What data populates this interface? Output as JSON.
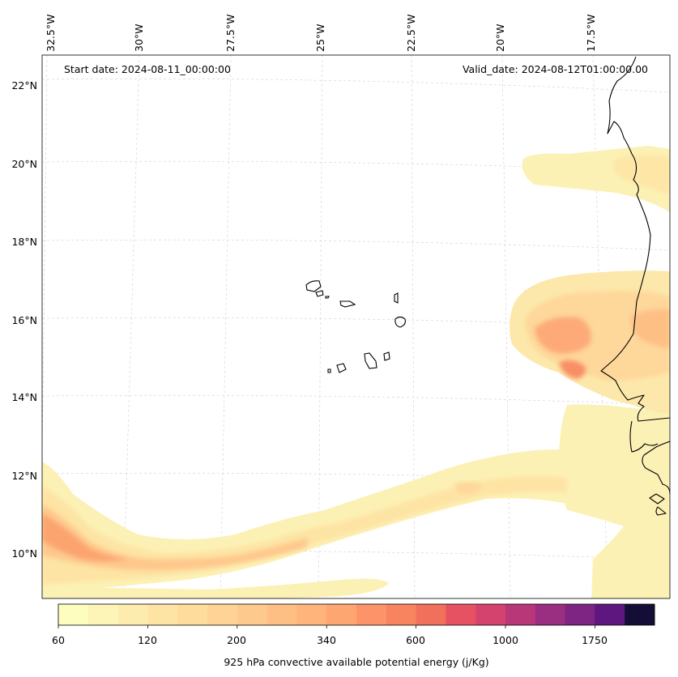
{
  "map": {
    "start_date": "Start date: 2024-08-11_00:00:00",
    "valid_date": "Valid_date: 2024-08-12T01:00:00.00",
    "lon_labels": [
      "32.5°W",
      "30°W",
      "27.5°W",
      "25°W",
      "22.5°W",
      "20°W",
      "17.5°W"
    ],
    "lat_labels": [
      "22°N",
      "20°N",
      "18°N",
      "16°N",
      "14°N",
      "12°N",
      "10°N"
    ],
    "land_outline_color": "#000000",
    "gridlines": "on"
  },
  "colorbar": {
    "label": "925 hPa convective available potential energy (j/Kg)",
    "tick_labels": [
      "60",
      "120",
      "200",
      "340",
      "600",
      "1000",
      "1750"
    ],
    "colors": [
      "#fcfdbf",
      "#fcf5b7",
      "#fcedae",
      "#fde4a4",
      "#fedc9c",
      "#fed395",
      "#fec98d",
      "#febf84",
      "#feb47b",
      "#fea672",
      "#fd9469",
      "#f7845e",
      "#f1705c",
      "#e75263",
      "#d3436e",
      "#b73779",
      "#9a2e80",
      "#7e2482",
      "#5e177f",
      "#140e36"
    ]
  }
}
